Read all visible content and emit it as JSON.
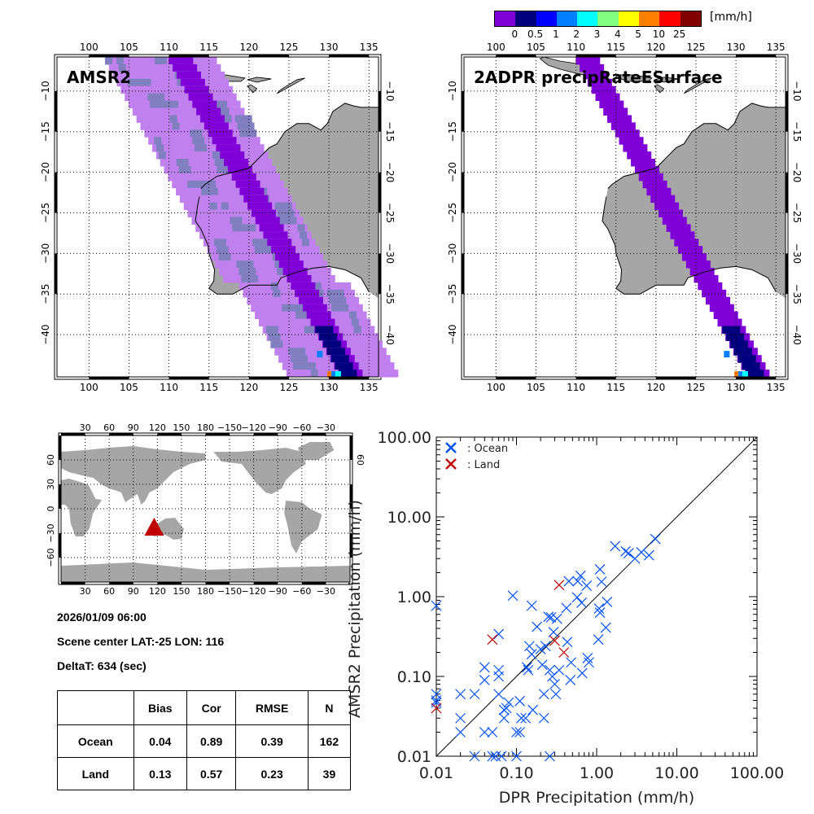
{
  "colorbar": {
    "unit": "[mm/h]",
    "colors": [
      "#8000d8",
      "#00007f",
      "#0000ff",
      "#0080ff",
      "#00ffff",
      "#80ff80",
      "#ffff00",
      "#ff8000",
      "#ff0000",
      "#800000"
    ],
    "labels": [
      "0",
      "0.5",
      "1",
      "2",
      "3",
      "4",
      "5",
      "10",
      "25"
    ]
  },
  "colors": {
    "land": "#a6a6a6",
    "amsr_light": "#c080ee",
    "amsr_grey": "#8080c0",
    "swath_purple": "#8000d8",
    "navy": "#00007f",
    "ocean_marker": "#0050ff",
    "land_marker": "#c00000",
    "scene_marker": "#c00000"
  },
  "maps": [
    {
      "title": "AMSR2",
      "lon_ticks": [
        "100",
        "105",
        "110",
        "115",
        "120",
        "125",
        "130",
        "135"
      ],
      "lat_ticks": [
        "-10",
        "-15",
        "-20",
        "-25",
        "-30",
        "-35",
        "-40"
      ]
    },
    {
      "title": "2ADPR precipRateESurface",
      "lon_ticks": [
        "100",
        "105",
        "110",
        "115",
        "120",
        "125",
        "130",
        "135"
      ],
      "lat_ticks": [
        "-10",
        "-15",
        "-20",
        "-25",
        "-30",
        "-35",
        "-40"
      ]
    }
  ],
  "globe": {
    "lon_ticks": [
      "30",
      "60",
      "90",
      "120",
      "150",
      "180",
      "-150",
      "-120",
      "-90",
      "-60",
      "-30"
    ],
    "lat_ticks": [
      "60",
      "30",
      "0",
      "-30",
      "-60"
    ],
    "right_lat_ticks": [
      "60"
    ],
    "scene_marker": "triangle"
  },
  "info": {
    "datetime": "2026/01/09 06:00",
    "scene_center": "Scene center LAT:-25   LON: 116",
    "delta_t": "DeltaT:  634 (sec)"
  },
  "stats_table": {
    "headers": [
      "",
      "Bias",
      "Cor",
      "RMSE",
      "N"
    ],
    "rows": [
      {
        "label": "Ocean",
        "bias": "0.04",
        "cor": "0.89",
        "rmse": "0.39",
        "n": "162"
      },
      {
        "label": "Land",
        "bias": "0.13",
        "cor": "0.57",
        "rmse": "0.23",
        "n": "39"
      }
    ]
  },
  "chart_data": {
    "type": "scatter",
    "title": "",
    "xlabel": "DPR Precipitation (mm/h)",
    "ylabel": "AMSR2 Precipitation (mm/h)",
    "xscale": "log",
    "yscale": "log",
    "xlim": [
      0.01,
      100
    ],
    "ylim": [
      0.01,
      100
    ],
    "x_tick_labels": [
      "0.01",
      "0.10",
      "1.00",
      "10.00",
      "100.00"
    ],
    "y_tick_labels": [
      "0.01",
      "0.10",
      "1.00",
      "10.00",
      "100.00"
    ],
    "x_ticks": [
      0.01,
      0.1,
      1,
      10,
      100
    ],
    "y_ticks": [
      0.01,
      0.1,
      1,
      10,
      100
    ],
    "reference_line": "y = x",
    "legend": {
      "position": "top-left",
      "entries": [
        ": Ocean",
        ": Land"
      ]
    },
    "series": [
      {
        "name": "Ocean",
        "marker": "x",
        "color": "#0050ff",
        "points": [
          [
            0.01,
            0.77
          ],
          [
            0.01,
            0.06
          ],
          [
            0.01,
            0.05
          ],
          [
            0.01,
            0.047
          ],
          [
            0.02,
            0.06
          ],
          [
            0.02,
            0.03
          ],
          [
            0.02,
            0.02
          ],
          [
            0.03,
            0.06
          ],
          [
            0.03,
            0.01
          ],
          [
            0.04,
            0.13
          ],
          [
            0.04,
            0.09
          ],
          [
            0.04,
            0.02
          ],
          [
            0.05,
            0.02
          ],
          [
            0.05,
            0.01
          ],
          [
            0.06,
            0.34
          ],
          [
            0.06,
            0.12
          ],
          [
            0.06,
            0.1
          ],
          [
            0.06,
            0.06
          ],
          [
            0.055,
            0.01
          ],
          [
            0.065,
            0.01
          ],
          [
            0.07,
            0.03
          ],
          [
            0.07,
            0.038
          ],
          [
            0.075,
            0.04
          ],
          [
            0.08,
            0.047
          ],
          [
            0.09,
            1.03
          ],
          [
            0.1,
            0.02
          ],
          [
            0.1,
            0.01
          ],
          [
            0.11,
            0.049
          ],
          [
            0.11,
            0.02
          ],
          [
            0.115,
            0.03
          ],
          [
            0.13,
            0.03
          ],
          [
            0.135,
            0.13
          ],
          [
            0.14,
            0.12
          ],
          [
            0.145,
            0.24
          ],
          [
            0.155,
            0.77
          ],
          [
            0.155,
            0.19
          ],
          [
            0.16,
            0.038
          ],
          [
            0.18,
            0.42
          ],
          [
            0.2,
            0.22
          ],
          [
            0.21,
            0.14
          ],
          [
            0.22,
            0.06
          ],
          [
            0.22,
            0.03
          ],
          [
            0.23,
            0.24
          ],
          [
            0.25,
            0.56
          ],
          [
            0.27,
            0.55
          ],
          [
            0.26,
            0.12
          ],
          [
            0.28,
            0.1
          ],
          [
            0.29,
            0.36
          ],
          [
            0.3,
            0.08
          ],
          [
            0.31,
            0.06
          ],
          [
            0.32,
            0.53
          ],
          [
            0.34,
            0.12
          ],
          [
            0.42,
            0.72
          ],
          [
            0.43,
            0.27
          ],
          [
            0.45,
            1.56
          ],
          [
            0.47,
            0.09
          ],
          [
            0.48,
            0.15
          ],
          [
            0.57,
            0.98
          ],
          [
            0.58,
            1.56
          ],
          [
            0.63,
            1.83
          ],
          [
            0.65,
            0.84
          ],
          [
            0.66,
            0.11
          ],
          [
            0.75,
            1.37
          ],
          [
            0.77,
            0.17
          ],
          [
            0.8,
            0.15
          ],
          [
            1.05,
            0.29
          ],
          [
            1.07,
            0.71
          ],
          [
            1.1,
            0.63
          ],
          [
            1.1,
            2.2
          ],
          [
            1.15,
            1.54
          ],
          [
            1.3,
            0.41
          ],
          [
            1.35,
            0.86
          ],
          [
            1.7,
            4.3
          ],
          [
            2.3,
            3.7
          ],
          [
            2.5,
            3.5
          ],
          [
            3.0,
            3.0
          ],
          [
            3.6,
            3.6
          ],
          [
            4.5,
            3.3
          ],
          [
            5.4,
            5.3
          ],
          [
            0.26,
            0.01
          ]
        ]
      },
      {
        "name": "Land",
        "marker": "x",
        "color": "#c00000",
        "points": [
          [
            0.01,
            0.04
          ],
          [
            0.05,
            0.29
          ],
          [
            0.3,
            0.28
          ],
          [
            0.34,
            1.4
          ],
          [
            0.39,
            0.2
          ]
        ]
      }
    ]
  }
}
